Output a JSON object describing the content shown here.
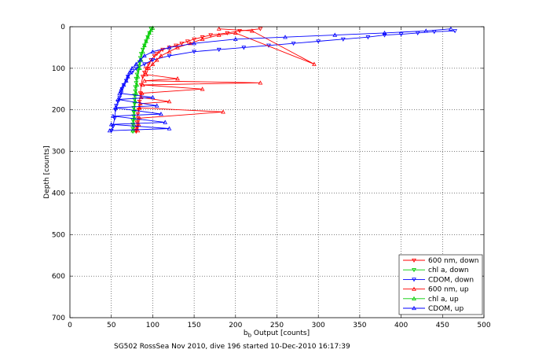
{
  "chart_data": {
    "type": "line",
    "xlabel": "b",
    "xlabel_subscript": "b",
    "xlabel_suffix": " Output [counts]",
    "ylabel": "Depth [counts]",
    "caption": "SG502 RossSea Nov 2010, dive 196 started 10-Dec-2010 16:17:39",
    "xlim": [
      0,
      500
    ],
    "ylim": [
      0,
      700
    ],
    "y_reversed": true,
    "grid": true,
    "legend_position": "bottom-right",
    "x_ticks": [
      "0",
      "50",
      "100",
      "150",
      "200",
      "250",
      "300",
      "350",
      "400",
      "450",
      "500"
    ],
    "y_ticks": [
      "0",
      "100",
      "200",
      "300",
      "400",
      "500",
      "600",
      "700"
    ],
    "series": [
      {
        "name": "600 nm, down",
        "color": "#ff0000",
        "marker": "triangle-down",
        "x": [
          230,
          205,
          190,
          170,
          160,
          150,
          142,
          135,
          128,
          120,
          112,
          108,
          105,
          102,
          98,
          95,
          92,
          90,
          88,
          86,
          85,
          84,
          83,
          82,
          82,
          81,
          81,
          80,
          80,
          80
        ],
        "y": [
          5,
          10,
          15,
          20,
          25,
          30,
          35,
          40,
          45,
          50,
          55,
          60,
          65,
          70,
          80,
          90,
          100,
          110,
          120,
          140,
          160,
          180,
          200,
          210,
          220,
          230,
          240,
          245,
          250,
          252
        ]
      },
      {
        "name": "chl a, down",
        "color": "#00cc00",
        "marker": "triangle-down",
        "x": [
          98,
          96,
          94,
          92,
          90,
          88,
          86,
          85,
          84,
          83,
          82,
          81,
          80,
          80,
          79,
          79,
          78,
          78,
          78,
          77,
          77,
          77,
          76,
          76,
          76,
          76
        ],
        "y": [
          5,
          15,
          25,
          35,
          45,
          55,
          65,
          75,
          85,
          95,
          105,
          115,
          125,
          135,
          145,
          155,
          165,
          175,
          185,
          195,
          205,
          215,
          225,
          235,
          245,
          252
        ]
      },
      {
        "name": "CDOM, down",
        "color": "#0000ff",
        "marker": "triangle-down",
        "x": [
          465,
          440,
          420,
          400,
          380,
          360,
          330,
          300,
          270,
          240,
          210,
          180,
          150,
          120,
          100,
          90,
          80,
          75,
          70,
          68,
          65,
          63,
          62,
          60,
          58,
          56,
          55,
          54,
          52,
          50
        ],
        "y": [
          10,
          12,
          15,
          18,
          20,
          25,
          30,
          35,
          40,
          45,
          50,
          55,
          60,
          70,
          80,
          90,
          100,
          110,
          120,
          130,
          140,
          150,
          160,
          170,
          180,
          190,
          200,
          220,
          240,
          250
        ]
      },
      {
        "name": "600 nm, up",
        "color": "#ff0000",
        "marker": "triangle-up",
        "x": [
          82,
          83,
          84,
          185,
          84,
          85,
          120,
          86,
          87,
          160,
          88,
          230,
          90,
          130,
          92,
          95,
          100,
          105,
          110,
          120,
          130,
          145,
          160,
          180,
          200,
          295,
          220,
          180
        ],
        "y": [
          250,
          235,
          220,
          205,
          195,
          185,
          180,
          170,
          160,
          150,
          140,
          135,
          130,
          125,
          115,
          100,
          90,
          80,
          70,
          60,
          50,
          40,
          30,
          20,
          15,
          90,
          10,
          5
        ]
      },
      {
        "name": "chl a, up",
        "color": "#00cc00",
        "marker": "triangle-up",
        "x": [
          76,
          77,
          78,
          78,
          79,
          80,
          81,
          82,
          84,
          86,
          88,
          90,
          92,
          94,
          96,
          98,
          100
        ],
        "y": [
          250,
          235,
          220,
          200,
          180,
          160,
          140,
          120,
          100,
          80,
          60,
          45,
          35,
          25,
          15,
          8,
          3
        ]
      },
      {
        "name": "CDOM, up",
        "color": "#0000ff",
        "marker": "triangle-up",
        "x": [
          48,
          120,
          50,
          115,
          52,
          110,
          55,
          105,
          58,
          100,
          60,
          62,
          65,
          68,
          70,
          72,
          75,
          80,
          85,
          90,
          100,
          120,
          150,
          200,
          260,
          320,
          380,
          430,
          460
        ],
        "y": [
          250,
          245,
          235,
          230,
          215,
          210,
          195,
          190,
          175,
          170,
          160,
          150,
          140,
          130,
          120,
          110,
          100,
          90,
          80,
          70,
          60,
          50,
          40,
          30,
          25,
          20,
          15,
          10,
          5
        ]
      }
    ]
  }
}
